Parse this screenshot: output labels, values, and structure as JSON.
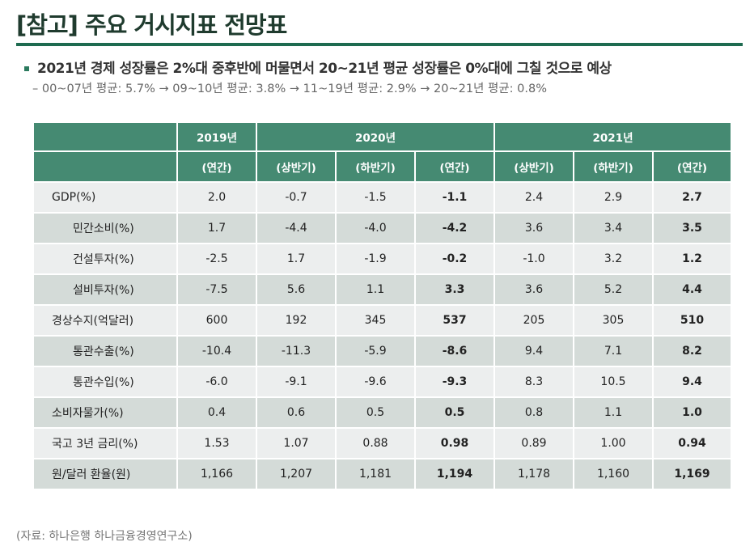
{
  "header": {
    "title": "[참고] 주요 거시지표 전망표",
    "bullet": "2021년 경제 성장률은 2%대 중후반에 머물면서 20~21년 평균 성장률은 0%대에 그칠 것으로 예상",
    "sub": "– 00~07년 평균: 5.7% → 09~10년 평균: 3.8% → 11~19년 평균: 2.9% → 20~21년 평균: 0.8%"
  },
  "table": {
    "years": [
      "2019년",
      "2020년",
      "2021년"
    ],
    "subheaders": [
      "(연간)",
      "(상반기)",
      "(하반기)",
      "(연간)",
      "(상반기)",
      "(하반기)",
      "(연간)"
    ],
    "rows": [
      {
        "label": "GDP(%)",
        "cells": [
          "2.0",
          "-0.7",
          "-1.5",
          "-1.1",
          "2.4",
          "2.9",
          "2.7"
        ]
      },
      {
        "label": "민간소비(%)",
        "cells": [
          "1.7",
          "-4.4",
          "-4.0",
          "-4.2",
          "3.6",
          "3.4",
          "3.5"
        ]
      },
      {
        "label": "건설투자(%)",
        "cells": [
          "-2.5",
          "1.7",
          "-1.9",
          "-0.2",
          "-1.0",
          "3.2",
          "1.2"
        ]
      },
      {
        "label": "설비투자(%)",
        "cells": [
          "-7.5",
          "5.6",
          "1.1",
          "3.3",
          "3.6",
          "5.2",
          "4.4"
        ]
      },
      {
        "label": "경상수지(억달러)",
        "cells": [
          "600",
          "192",
          "345",
          "537",
          "205",
          "305",
          "510"
        ]
      },
      {
        "label": "통관수출(%)",
        "cells": [
          "-10.4",
          "-11.3",
          "-5.9",
          "-8.6",
          "9.4",
          "7.1",
          "8.2"
        ]
      },
      {
        "label": "통관수입(%)",
        "cells": [
          "-6.0",
          "-9.1",
          "-9.6",
          "-9.3",
          "8.3",
          "10.5",
          "9.4"
        ]
      },
      {
        "label": "소비자물가(%)",
        "cells": [
          "0.4",
          "0.6",
          "0.5",
          "0.5",
          "0.8",
          "1.1",
          "1.0"
        ]
      },
      {
        "label": "국고 3년 금리(%)",
        "cells": [
          "1.53",
          "1.07",
          "0.88",
          "0.98",
          "0.89",
          "1.00",
          "0.94"
        ]
      },
      {
        "label": "원/달러 환율(원)",
        "cells": [
          "1,166",
          "1,207",
          "1,181",
          "1,194",
          "1,178",
          "1,160",
          "1,169"
        ]
      }
    ]
  },
  "footer": {
    "source": "(자료: 하나은행 하나금융경영연구소)"
  }
}
